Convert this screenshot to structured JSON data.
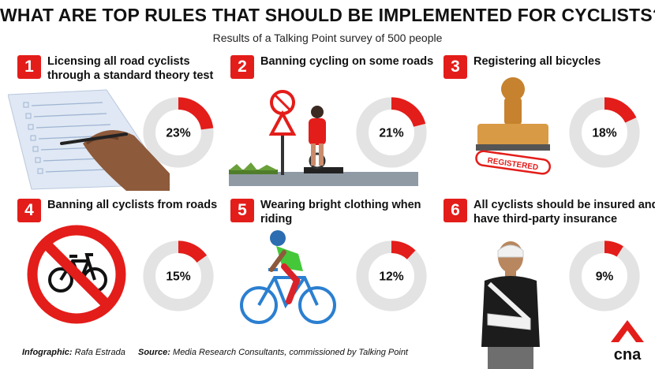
{
  "title": "WHAT ARE TOP RULES THAT SHOULD BE IMPLEMENTED FOR CYCLISTS?",
  "subtitle": "Results of a Talking Point survey of 500 people",
  "colors": {
    "accent": "#e31d1a",
    "track": "#e3e3e3",
    "text": "#111111"
  },
  "chart_data": {
    "type": "pie",
    "items": [
      {
        "rank": "1",
        "label": "Licensing all road cyclists through a standard theory test",
        "value": 23,
        "display": "23%"
      },
      {
        "rank": "2",
        "label": "Banning cycling on some roads",
        "value": 21,
        "display": "21%"
      },
      {
        "rank": "3",
        "label": "Registering all bicycles",
        "value": 18,
        "display": "18%"
      },
      {
        "rank": "4",
        "label": "Banning all cyclists from roads",
        "value": 15,
        "display": "15%"
      },
      {
        "rank": "5",
        "label": "Wearing bright clothing when riding",
        "value": 12,
        "display": "12%"
      },
      {
        "rank": "6",
        "label": "All cyclists should be insured and have third-party insurance",
        "value": 9,
        "display": "9%"
      }
    ]
  },
  "stamp_text": "REGISTERED",
  "footer": {
    "credit_prefix": "Infographic:",
    "credit_name": "Rafa Estrada",
    "source_prefix": "Source:",
    "source_text": "Media Research Consultants, commissioned by Talking Point"
  },
  "logo_text": "cna",
  "icons": [
    "pen-hand-icon",
    "no-bicycle-sign-icon",
    "rubber-stamp-icon",
    "bicycle-ban-icon",
    "cyclist-icon",
    "injured-person-icon"
  ]
}
